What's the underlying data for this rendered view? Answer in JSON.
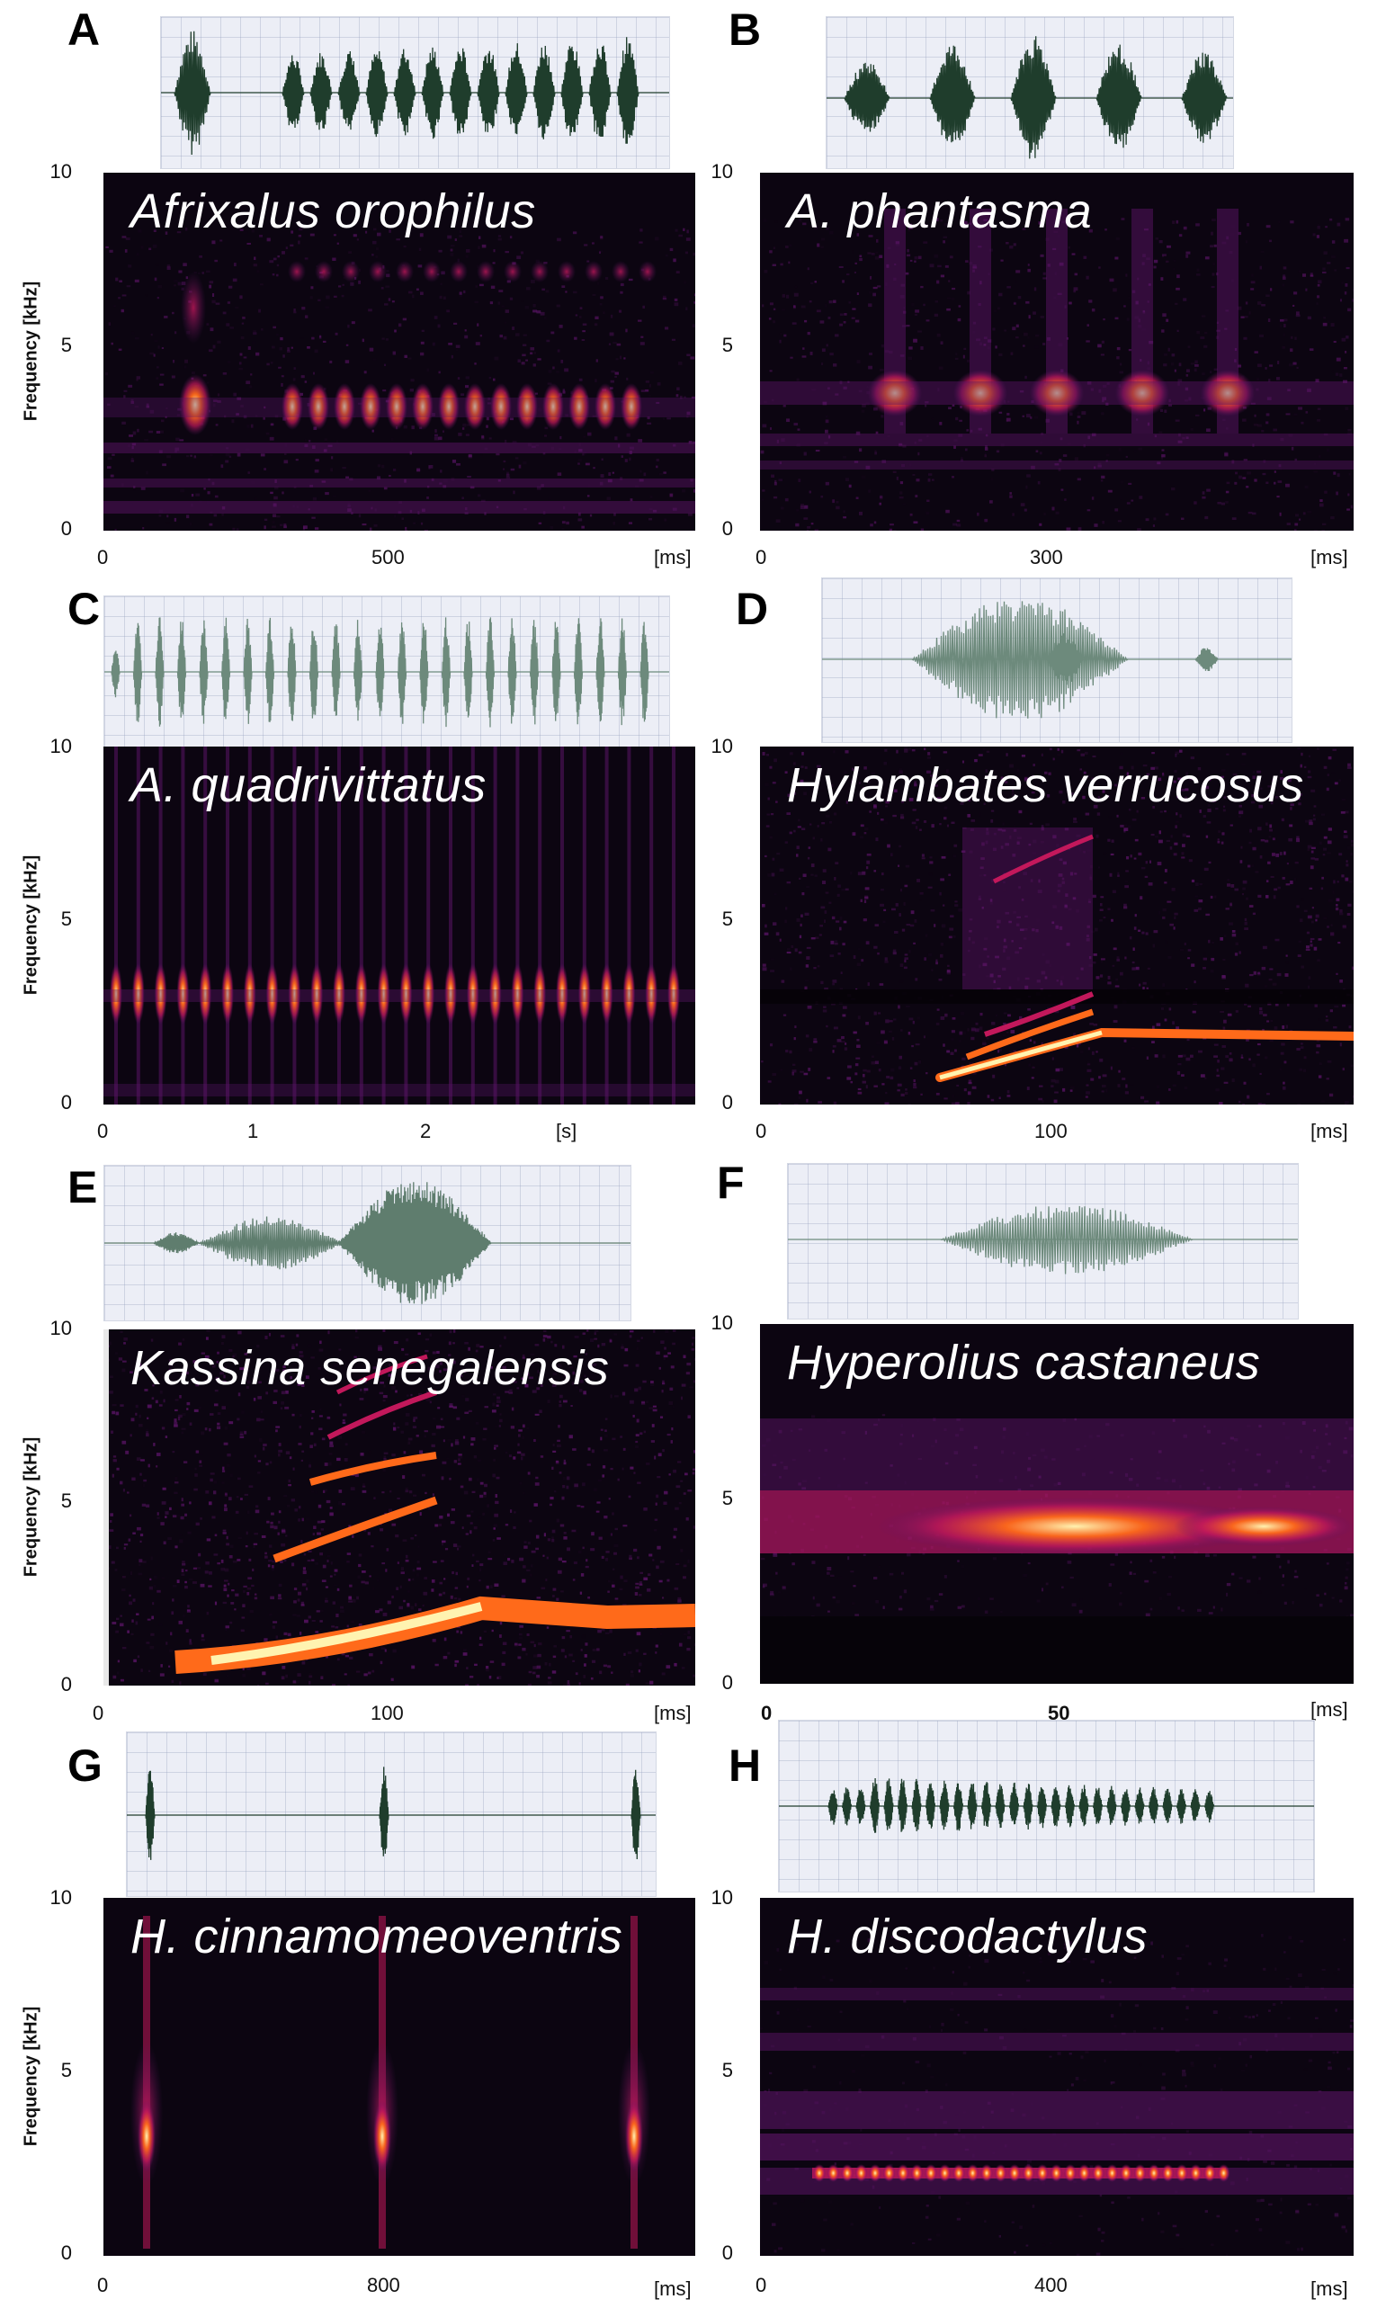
{
  "figure": {
    "panels": [
      {
        "letter": "A",
        "species": "Afrixalus orophilus",
        "y_ticks": [
          "10",
          "5",
          "0"
        ],
        "y_label": "Frequency [kHz]",
        "x_ticks": [
          "0",
          "500",
          "[ms]"
        ],
        "wave_color": "#1f3d2c"
      },
      {
        "letter": "B",
        "species": "A. phantasma",
        "y_ticks": [
          "10",
          "5",
          "0"
        ],
        "y_label": "",
        "x_ticks": [
          "0",
          "300",
          "[ms]"
        ],
        "wave_color": "#1f3d2c"
      },
      {
        "letter": "C",
        "species": "A. quadrivittatus",
        "y_ticks": [
          "10",
          "5",
          "0"
        ],
        "y_label": "Frequency [kHz]",
        "x_ticks": [
          "0",
          "1",
          "2",
          "[s]"
        ],
        "wave_color": "#6d8a7c"
      },
      {
        "letter": "D",
        "species": "Hylambates verrucosus",
        "y_ticks": [
          "10",
          "5",
          "0"
        ],
        "y_label": "",
        "x_ticks": [
          "0",
          "100",
          "[ms]"
        ],
        "wave_color": "#6d8a7c"
      },
      {
        "letter": "E",
        "species": "Kassina senegalensis",
        "y_ticks": [
          "10",
          "5",
          "0"
        ],
        "y_label": "Frequency [kHz]",
        "x_ticks": [
          "0",
          "100",
          "[ms]"
        ],
        "wave_color": "#5f7d6e"
      },
      {
        "letter": "F",
        "species": "Hyperolius castaneus",
        "y_ticks": [
          "10",
          "5",
          "0"
        ],
        "y_label": "",
        "x_ticks": [
          "0",
          "50",
          "[ms]"
        ],
        "wave_color": "#6d8a7c"
      },
      {
        "letter": "G",
        "species": "H. cinnamomeoventris",
        "y_ticks": [
          "10",
          "5",
          "0"
        ],
        "y_label": "Frequency [kHz]",
        "x_ticks": [
          "0",
          "800",
          "[ms]"
        ],
        "wave_color": "#1f3d2c"
      },
      {
        "letter": "H",
        "species": "H. discodactylus",
        "y_ticks": [
          "10",
          "5",
          "0"
        ],
        "y_label": "",
        "x_ticks": [
          "0",
          "400",
          "[ms]"
        ],
        "wave_color": "#1f3d2c"
      }
    ]
  },
  "colors": {
    "spec_bg": "#0c0511",
    "spec_low": "#5a1466",
    "spec_mid": "#c2185b",
    "spec_high": "#ff6a1a",
    "spec_peak": "#fff3b0"
  }
}
